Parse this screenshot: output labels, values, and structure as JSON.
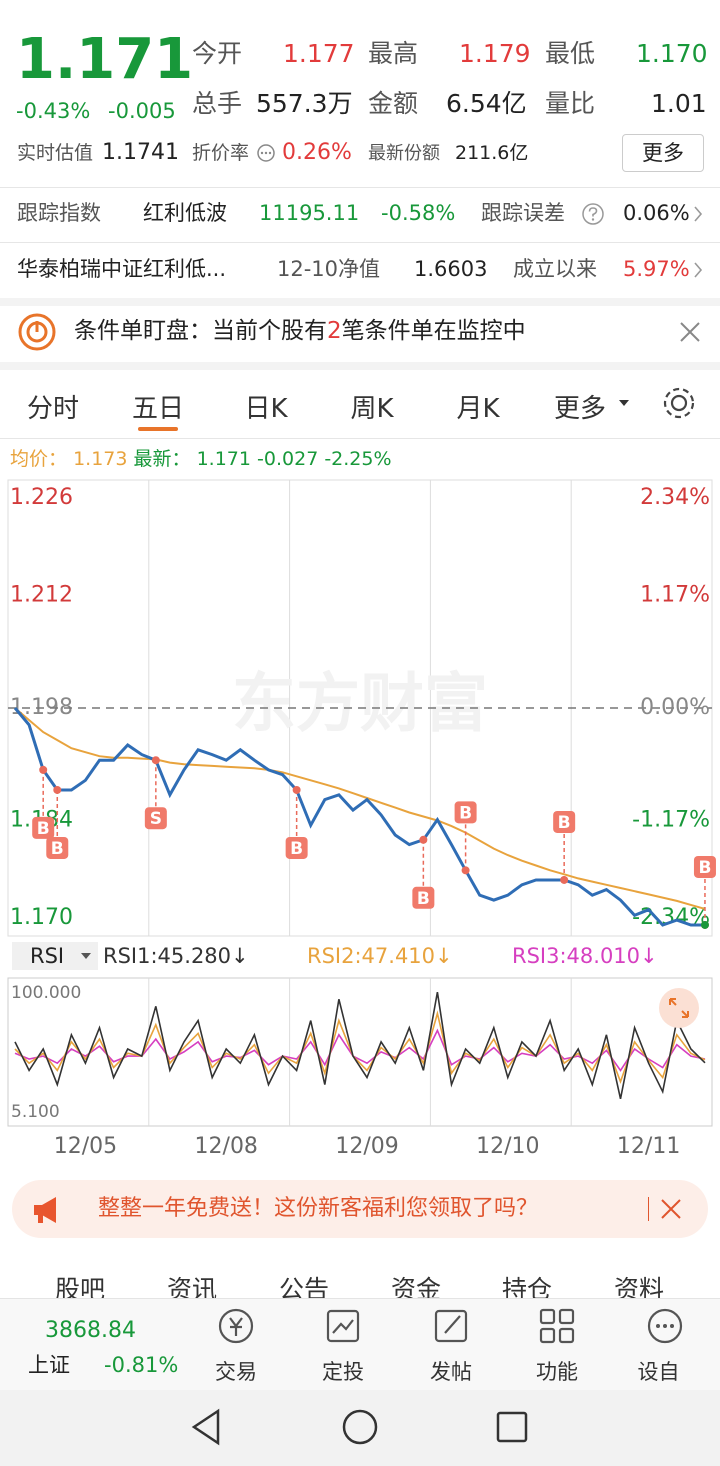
{
  "quote": {
    "price": "1.171",
    "change_pct": "-0.43%",
    "change": "-0.005",
    "stats": [
      {
        "label": "今开",
        "value": "1.177"
      },
      {
        "label": "最高",
        "value": "1.179"
      },
      {
        "label": "最低",
        "value": "1.170"
      },
      {
        "label": "总手",
        "value": "557.3万"
      },
      {
        "label": "金额",
        "value": "6.54亿"
      },
      {
        "label": "量比",
        "value": "1.01"
      }
    ],
    "est_label": "实时估值",
    "est_value": "1.1741",
    "discount_label": "折价率",
    "discount_value": "0.26%",
    "shares_label": "最新份额",
    "shares_value": "211.6亿",
    "more": "更多"
  },
  "tracking": {
    "label": "跟踪指数",
    "index": "红利低波",
    "index_value": "11195.11",
    "index_change": "-0.58%",
    "error_label": "跟踪误差",
    "error_value": "0.06%"
  },
  "fund": {
    "name": "华泰柏瑞中证红利低...",
    "nav_label": "12-10净值",
    "nav_value": "1.6603",
    "since_label": "成立以来",
    "since_value": "5.97%"
  },
  "alert": {
    "prefix": "条件单盯盘：当前个股有",
    "count": "2",
    "suffix": "笔条件单在监控中"
  },
  "tabs": [
    "分时",
    "五日",
    "日K",
    "周K",
    "月K",
    "更多"
  ],
  "info": {
    "change": "-0.027",
    "change_pct": "-2.25%"
  },
  "chart_data": [
    {
      "type": "line",
      "watermark": "东方财富",
      "series": [
        {
          "name": "最新：",
          "color": "#2f6db5",
          "values": [
            1.198,
            1.1959,
            1.1903,
            1.1878,
            1.1878,
            1.189,
            1.1915,
            1.1915,
            1.1934,
            1.1922,
            1.1915,
            1.1872,
            1.1903,
            1.1928,
            1.1922,
            1.1915,
            1.1928,
            1.1915,
            1.1903,
            1.1897,
            1.1878,
            1.1834,
            1.1866,
            1.1872,
            1.1853,
            1.1866,
            1.1847,
            1.1822,
            1.181,
            1.1816,
            1.1841,
            1.181,
            1.1778,
            1.1747,
            1.1741,
            1.1747,
            1.176,
            1.1766,
            1.1766,
            1.1766,
            1.176,
            1.1747,
            1.1754,
            1.1741,
            1.1722,
            1.1729,
            1.171,
            1.1716,
            1.171,
            1.171
          ]
        },
        {
          "name": "均价：",
          "color": "#e8a33d",
          "values": [
            1.198,
            1.1965,
            1.195,
            1.194,
            1.193,
            1.1925,
            1.192,
            1.1918,
            1.1918,
            1.1917,
            1.1916,
            1.1912,
            1.191,
            1.1909,
            1.1908,
            1.1907,
            1.1906,
            1.1905,
            1.1903,
            1.19,
            1.1895,
            1.189,
            1.1885,
            1.188,
            1.1874,
            1.1868,
            1.1862,
            1.1856,
            1.185,
            1.1845,
            1.184,
            1.1833,
            1.1825,
            1.1815,
            1.1805,
            1.1797,
            1.179,
            1.1784,
            1.1778,
            1.1773,
            1.1768,
            1.1764,
            1.176,
            1.1756,
            1.1752,
            1.1748,
            1.1744,
            1.174,
            1.1735,
            1.173
          ]
        }
      ],
      "ylim": [
        1.17,
        1.226
      ],
      "yticks": [
        1.226,
        1.212,
        1.198,
        1.184,
        {
          "value": 1.17,
          "label": "1.170"
        }
      ],
      "y2lim": [
        -2.34,
        2.34
      ],
      "y2ticks": [
        {
          "value": 2.34,
          "label": "2.34%"
        },
        {
          "value": 1.17,
          "label": "1.17%"
        },
        {
          "value": 0,
          "label": "0.00%"
        },
        {
          "value": -1.17,
          "label": "-1.17%"
        },
        {
          "value": -2.34,
          "label": "-2.34%"
        }
      ],
      "signals": [
        {
          "label": "B",
          "at": 2
        },
        {
          "label": "B",
          "at": 3
        },
        {
          "label": "S",
          "at": 10
        },
        {
          "label": "B",
          "at": 20
        },
        {
          "label": "B",
          "at": 29
        },
        {
          "label": "B",
          "at": 32
        },
        {
          "label": "B",
          "at": 39
        },
        {
          "label": "B",
          "at": 49
        }
      ]
    },
    {
      "type": "line",
      "indicator": "RSI",
      "categories": [
        null,
        null,
        null,
        null,
        null,
        "12/05",
        null,
        null,
        null,
        null,
        null,
        null,
        null,
        null,
        null,
        "12/08",
        null,
        null,
        null,
        null,
        null,
        null,
        null,
        null,
        null,
        "12/09",
        null,
        null,
        null,
        null,
        null,
        null,
        null,
        null,
        null,
        "12/10",
        null,
        null,
        null,
        null,
        null,
        null,
        null,
        null,
        null,
        "12/11",
        null,
        null,
        null,
        null
      ],
      "series": [
        {
          "name": "RSI1:45.280↓",
          "color": "#333333",
          "values": [
            60,
            40,
            55,
            30,
            65,
            45,
            70,
            35,
            55,
            50,
            85,
            40,
            60,
            75,
            35,
            55,
            45,
            65,
            30,
            50,
            40,
            75,
            30,
            90,
            50,
            35,
            60,
            45,
            70,
            40,
            95,
            30,
            55,
            45,
            70,
            35,
            60,
            50,
            75,
            40,
            55,
            30,
            65,
            20,
            70,
            45,
            25,
            75,
            55,
            45.28
          ]
        },
        {
          "name": "RSI2:47.410↓",
          "color": "#e8a33d",
          "values": [
            55,
            45,
            52,
            40,
            60,
            48,
            62,
            42,
            52,
            50,
            72,
            45,
            56,
            66,
            42,
            52,
            48,
            58,
            38,
            50,
            45,
            66,
            38,
            75,
            50,
            40,
            56,
            48,
            62,
            45,
            80,
            38,
            52,
            47,
            62,
            42,
            56,
            50,
            65,
            45,
            52,
            40,
            58,
            32,
            60,
            47,
            35,
            65,
            52,
            47.41
          ]
        },
        {
          "name": "RSI3:48.010↓",
          "color": "#d63fc0",
          "values": [
            52,
            48,
            50,
            45,
            55,
            50,
            57,
            46,
            50,
            50,
            62,
            48,
            53,
            60,
            46,
            50,
            49,
            54,
            44,
            50,
            48,
            60,
            44,
            65,
            50,
            45,
            53,
            49,
            56,
            48,
            68,
            44,
            50,
            48,
            56,
            46,
            52,
            50,
            58,
            48,
            50,
            45,
            54,
            40,
            55,
            48,
            42,
            58,
            50,
            48.01
          ]
        }
      ],
      "ylim": [
        5.1,
        100
      ],
      "yticks": [
        {
          "value": 100,
          "label": "100.000"
        },
        {
          "value": 5.1,
          "label": "5.100"
        }
      ]
    }
  ],
  "promo": "整整一年免费送！这份新客福利您领取了吗？",
  "sections": [
    "股吧",
    "资讯",
    "公告",
    "资金",
    "持仓",
    "资料"
  ],
  "nav": {
    "index_value": "3868.84",
    "index_name": "上证",
    "index_change": "-0.81%",
    "items": [
      "交易",
      "定投",
      "发帖",
      "功能",
      "设自选"
    ]
  }
}
